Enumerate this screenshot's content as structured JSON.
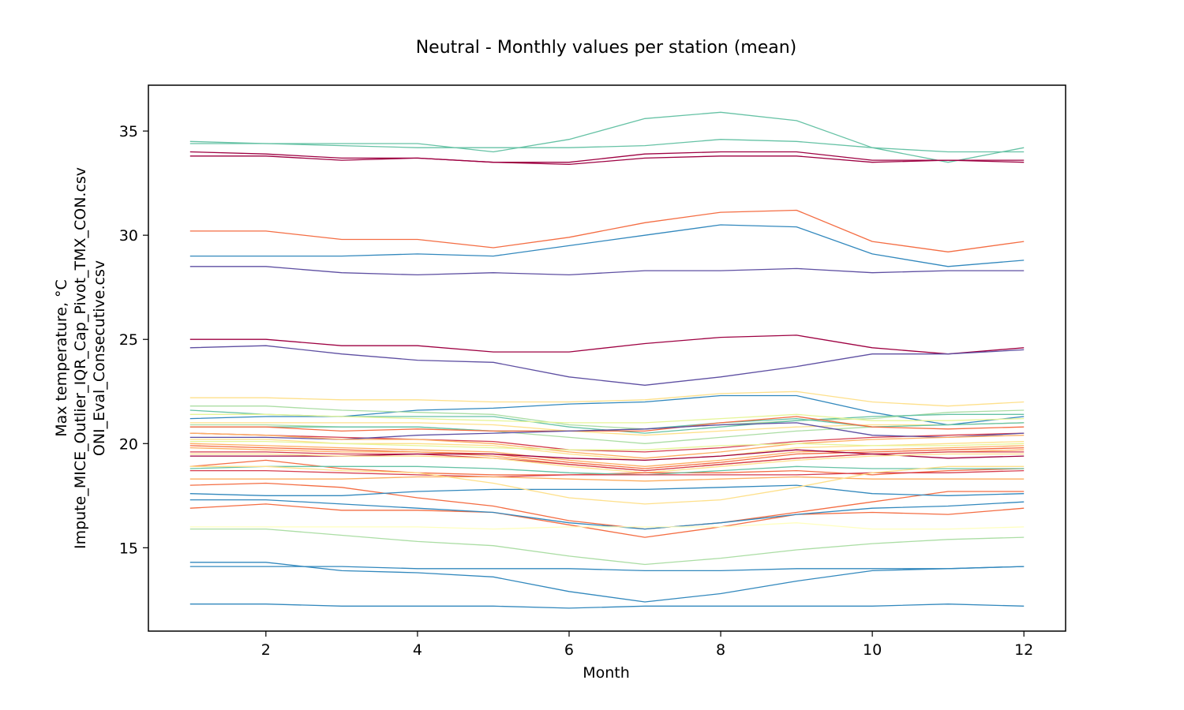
{
  "chart_data": {
    "type": "line",
    "title": "Neutral - Monthly values per station (mean)",
    "xlabel": "Month",
    "ylabel_lines": [
      "Max temperature, °C",
      "Impute_MICE_Outlier_IQR_Cap_Pivot_TMX_CON.csv",
      "ONI_Eval_Consecutive.csv"
    ],
    "xlim": [
      0.45,
      12.55
    ],
    "ylim": [
      11.0,
      37.2
    ],
    "xticks": [
      2,
      4,
      6,
      8,
      10,
      12
    ],
    "yticks": [
      15,
      20,
      25,
      30,
      35
    ],
    "grid": false,
    "legend": "none",
    "x": [
      1,
      2,
      3,
      4,
      5,
      6,
      7,
      8,
      9,
      10,
      11,
      12
    ],
    "series": [
      {
        "color": "#66c2a5",
        "values": [
          34.5,
          34.4,
          34.4,
          34.4,
          34.0,
          34.6,
          35.6,
          35.9,
          35.5,
          34.2,
          33.5,
          34.2
        ]
      },
      {
        "color": "#66c2a5",
        "values": [
          34.4,
          34.4,
          34.3,
          34.2,
          34.2,
          34.2,
          34.3,
          34.6,
          34.5,
          34.2,
          34.0,
          34.0
        ]
      },
      {
        "color": "#9e0142",
        "values": [
          34.0,
          33.9,
          33.7,
          33.7,
          33.5,
          33.5,
          33.9,
          34.0,
          34.0,
          33.6,
          33.6,
          33.6
        ]
      },
      {
        "color": "#9e0142",
        "values": [
          33.8,
          33.8,
          33.6,
          33.7,
          33.5,
          33.4,
          33.7,
          33.8,
          33.8,
          33.5,
          33.6,
          33.5
        ]
      },
      {
        "color": "#f46d43",
        "values": [
          30.2,
          30.2,
          29.8,
          29.8,
          29.4,
          29.9,
          30.6,
          31.1,
          31.2,
          29.7,
          29.2,
          29.7
        ]
      },
      {
        "color": "#3288bd",
        "values": [
          29.0,
          29.0,
          29.0,
          29.1,
          29.0,
          29.5,
          30.0,
          30.5,
          30.4,
          29.1,
          28.5,
          28.8
        ]
      },
      {
        "color": "#5e4fa2",
        "values": [
          28.5,
          28.5,
          28.2,
          28.1,
          28.2,
          28.1,
          28.3,
          28.3,
          28.4,
          28.2,
          28.3,
          28.3
        ]
      },
      {
        "color": "#9e0142",
        "values": [
          25.0,
          25.0,
          24.7,
          24.7,
          24.4,
          24.4,
          24.8,
          25.1,
          25.2,
          24.6,
          24.3,
          24.6
        ]
      },
      {
        "color": "#5e4fa2",
        "values": [
          24.6,
          24.7,
          24.3,
          24.0,
          23.9,
          23.2,
          22.8,
          23.2,
          23.7,
          24.3,
          24.3,
          24.5
        ]
      },
      {
        "color": "#fee08b",
        "values": [
          22.2,
          22.2,
          22.1,
          22.1,
          22.0,
          22.0,
          22.1,
          22.4,
          22.5,
          22.0,
          21.8,
          22.0
        ]
      },
      {
        "color": "#3288bd",
        "values": [
          21.2,
          21.3,
          21.3,
          21.6,
          21.7,
          21.9,
          22.0,
          22.3,
          22.3,
          21.5,
          20.9,
          21.3
        ]
      },
      {
        "color": "#abdda4",
        "values": [
          21.8,
          21.8,
          21.6,
          21.5,
          21.4,
          20.9,
          20.7,
          20.9,
          21.1,
          21.2,
          21.5,
          21.6
        ]
      },
      {
        "color": "#66c2a5",
        "values": [
          21.6,
          21.4,
          21.3,
          21.3,
          21.3,
          20.8,
          20.5,
          20.8,
          21.1,
          21.3,
          21.4,
          21.4
        ]
      },
      {
        "color": "#e6f598",
        "values": [
          21.4,
          21.4,
          21.3,
          21.2,
          21.1,
          21.0,
          21.0,
          21.2,
          21.4,
          21.1,
          21.1,
          21.2
        ]
      },
      {
        "color": "#fee08b",
        "values": [
          21.0,
          21.0,
          21.0,
          21.0,
          20.9,
          20.6,
          20.4,
          20.6,
          20.8,
          20.9,
          20.9,
          21.0
        ]
      },
      {
        "color": "#abdda4",
        "values": [
          20.9,
          20.9,
          20.8,
          20.8,
          20.6,
          20.3,
          20.0,
          20.3,
          20.6,
          20.8,
          20.9,
          21.0
        ]
      },
      {
        "color": "#66c2a5",
        "values": [
          20.8,
          20.8,
          20.8,
          20.8,
          20.6,
          20.6,
          20.7,
          21.0,
          21.2,
          20.8,
          20.9,
          21.0
        ]
      },
      {
        "color": "#f46d43",
        "values": [
          20.8,
          20.8,
          20.6,
          20.7,
          20.6,
          20.6,
          20.6,
          21.0,
          21.3,
          20.8,
          20.7,
          20.8
        ]
      },
      {
        "color": "#d53e4f",
        "values": [
          20.5,
          20.4,
          20.3,
          20.2,
          20.1,
          19.7,
          19.6,
          19.8,
          20.1,
          20.3,
          20.4,
          20.5
        ]
      },
      {
        "color": "#5e4fa2",
        "values": [
          20.3,
          20.3,
          20.2,
          20.4,
          20.5,
          20.6,
          20.7,
          20.9,
          21.0,
          20.4,
          20.3,
          20.5
        ]
      },
      {
        "color": "#fdae61",
        "values": [
          20.5,
          20.4,
          20.2,
          20.2,
          20.0,
          19.6,
          19.3,
          19.6,
          20.0,
          20.2,
          20.3,
          20.4
        ]
      },
      {
        "color": "#fee08b",
        "values": [
          20.2,
          20.2,
          20.0,
          20.0,
          19.9,
          19.5,
          19.2,
          19.4,
          19.8,
          19.9,
          20.0,
          20.1
        ]
      },
      {
        "color": "#e6f598",
        "values": [
          20.1,
          20.1,
          20.0,
          19.9,
          19.8,
          19.7,
          19.7,
          19.9,
          20.0,
          19.9,
          19.9,
          20.0
        ]
      },
      {
        "color": "#fdae61",
        "values": [
          20.0,
          19.9,
          19.8,
          19.7,
          19.6,
          19.2,
          18.9,
          19.2,
          19.6,
          19.7,
          19.8,
          19.9
        ]
      },
      {
        "color": "#f46d43",
        "values": [
          19.9,
          19.8,
          19.7,
          19.6,
          19.5,
          19.1,
          18.8,
          19.1,
          19.5,
          19.6,
          19.7,
          19.8
        ]
      },
      {
        "color": "#fdae61",
        "values": [
          19.8,
          19.7,
          19.6,
          19.6,
          19.4,
          19.0,
          18.7,
          19.0,
          19.3,
          19.5,
          19.6,
          19.7
        ]
      },
      {
        "color": "#d53e4f",
        "values": [
          19.6,
          19.6,
          19.5,
          19.5,
          19.3,
          19.0,
          18.7,
          19.0,
          19.3,
          19.5,
          19.6,
          19.6
        ]
      },
      {
        "color": "#9e0142",
        "values": [
          19.4,
          19.4,
          19.4,
          19.5,
          19.5,
          19.3,
          19.2,
          19.4,
          19.7,
          19.5,
          19.3,
          19.4
        ]
      },
      {
        "color": "#fee08b",
        "values": [
          19.5,
          19.5,
          19.4,
          19.4,
          19.3,
          18.9,
          18.6,
          18.9,
          19.2,
          19.4,
          19.5,
          19.5
        ]
      },
      {
        "color": "#f46d43",
        "values": [
          18.9,
          19.2,
          18.8,
          18.6,
          18.5,
          18.5,
          18.6,
          18.6,
          18.7,
          18.5,
          18.7,
          18.8
        ]
      },
      {
        "color": "#66c2a5",
        "values": [
          18.8,
          18.9,
          18.9,
          18.9,
          18.8,
          18.6,
          18.5,
          18.7,
          18.9,
          18.8,
          18.8,
          18.8
        ]
      },
      {
        "color": "#d53e4f",
        "values": [
          18.7,
          18.7,
          18.6,
          18.5,
          18.4,
          18.5,
          18.5,
          18.5,
          18.5,
          18.6,
          18.6,
          18.7
        ]
      },
      {
        "color": "#fdae61",
        "values": [
          18.3,
          18.3,
          18.3,
          18.4,
          18.4,
          18.3,
          18.2,
          18.3,
          18.4,
          18.3,
          18.3,
          18.3
        ]
      },
      {
        "color": "#f46d43",
        "values": [
          18.0,
          18.1,
          17.9,
          17.4,
          17.0,
          16.3,
          15.9,
          16.2,
          16.7,
          17.2,
          17.7,
          17.7
        ]
      },
      {
        "color": "#3288bd",
        "values": [
          17.6,
          17.5,
          17.5,
          17.7,
          17.8,
          17.8,
          17.8,
          17.9,
          18.0,
          17.6,
          17.5,
          17.6
        ]
      },
      {
        "color": "#f46d43",
        "values": [
          16.9,
          17.1,
          16.8,
          16.8,
          16.7,
          16.1,
          15.5,
          16.0,
          16.6,
          16.7,
          16.6,
          16.9
        ]
      },
      {
        "color": "#3288bd",
        "values": [
          17.3,
          17.3,
          17.1,
          16.9,
          16.7,
          16.2,
          15.9,
          16.2,
          16.6,
          16.9,
          17.0,
          17.2
        ]
      },
      {
        "color": "#fee08b",
        "values": [
          18.9,
          18.9,
          18.7,
          18.6,
          18.1,
          17.4,
          17.1,
          17.3,
          17.9,
          18.6,
          18.9,
          18.9
        ]
      },
      {
        "color": "#ffffbf",
        "values": [
          16.0,
          16.0,
          16.0,
          16.0,
          15.9,
          16.0,
          16.0,
          16.0,
          16.2,
          15.9,
          15.9,
          16.0
        ]
      },
      {
        "color": "#abdda4",
        "values": [
          15.9,
          15.9,
          15.6,
          15.3,
          15.1,
          14.6,
          14.2,
          14.5,
          14.9,
          15.2,
          15.4,
          15.5
        ]
      },
      {
        "color": "#3288bd",
        "values": [
          14.1,
          14.1,
          14.1,
          14.0,
          14.0,
          14.0,
          13.9,
          13.9,
          14.0,
          14.0,
          14.0,
          14.1
        ]
      },
      {
        "color": "#3288bd",
        "values": [
          14.3,
          14.3,
          13.9,
          13.8,
          13.6,
          12.9,
          12.4,
          12.8,
          13.4,
          13.9,
          14.0,
          14.1
        ]
      },
      {
        "color": "#3288bd",
        "values": [
          12.3,
          12.3,
          12.2,
          12.2,
          12.2,
          12.1,
          12.2,
          12.2,
          12.2,
          12.2,
          12.3,
          12.2
        ]
      }
    ]
  }
}
